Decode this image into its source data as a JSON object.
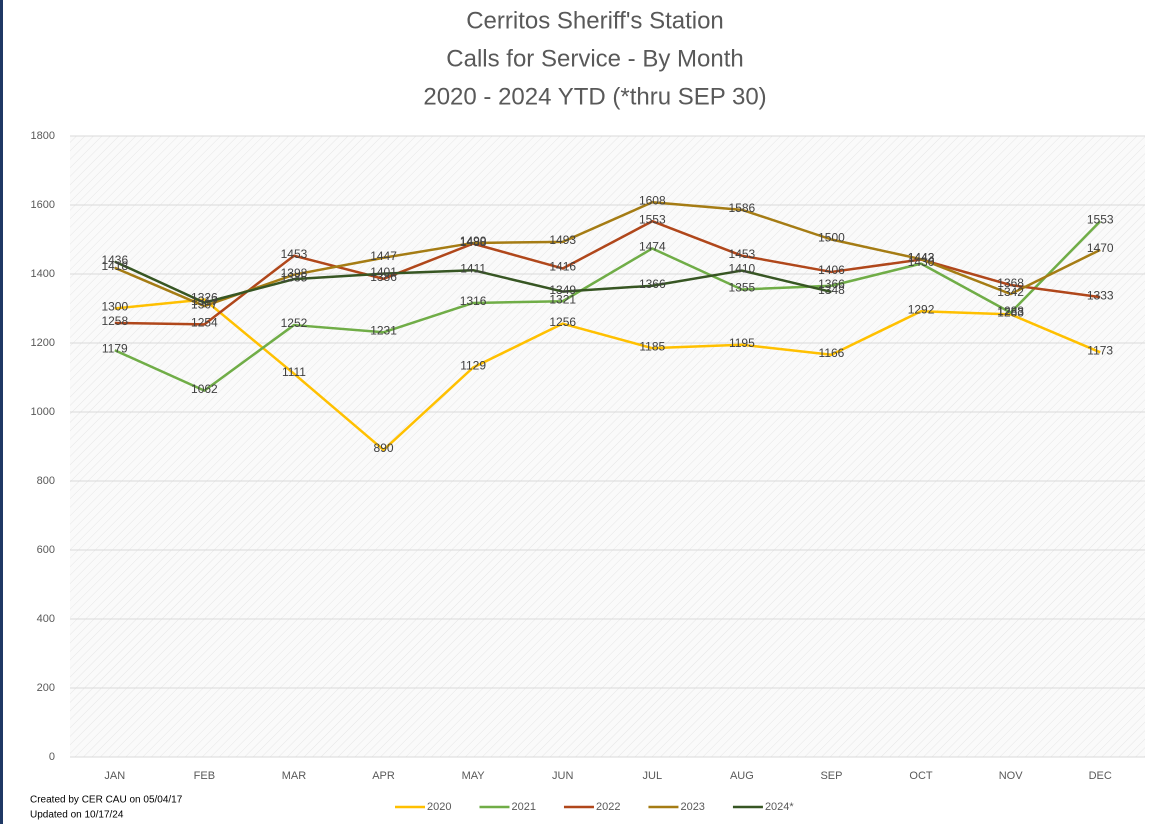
{
  "chart_data": {
    "type": "line",
    "title": [
      "Cerritos Sheriff's Station",
      "Calls for Service - By Month",
      "2020 - 2024 YTD (*thru SEP 30)"
    ],
    "notes": [
      "Created by CER CAU on 05/04/17",
      "Updated on 10/17/24"
    ],
    "categories": [
      "JAN",
      "FEB",
      "MAR",
      "APR",
      "MAY",
      "JUN",
      "JUL",
      "AUG",
      "SEP",
      "OCT",
      "NOV",
      "DEC"
    ],
    "series": [
      {
        "name": "2020",
        "color": "#ffc000",
        "values": [
          1300,
          1326,
          1111,
          890,
          1129,
          1256,
          1185,
          1195,
          1166,
          1292,
          1283,
          1173
        ]
      },
      {
        "name": "2021",
        "color": "#70ad47",
        "values": [
          1179,
          1062,
          1252,
          1231,
          1316,
          1321,
          1474,
          1355,
          1366,
          1430,
          1288,
          1553
        ]
      },
      {
        "name": "2022",
        "color": "#b0471b",
        "values": [
          1258,
          1254,
          1453,
          1386,
          1488,
          1416,
          1553,
          1453,
          1406,
          1442,
          1368,
          1333
        ]
      },
      {
        "name": "2023",
        "color": "#a57c14",
        "values": [
          1418,
          1307,
          1398,
          1447,
          1490,
          1493,
          1608,
          1586,
          1500,
          1443,
          1342,
          1470
        ]
      },
      {
        "name": "2024*",
        "color": "#375623",
        "values": [
          1436,
          1317,
          1385,
          1401,
          1411,
          1349,
          1366,
          1410,
          1348,
          null,
          null,
          null
        ]
      }
    ],
    "ylim": [
      0,
      1800
    ],
    "yticks": [
      0,
      200,
      400,
      600,
      800,
      1000,
      1200,
      1400,
      1600,
      1800
    ],
    "grid": true
  }
}
